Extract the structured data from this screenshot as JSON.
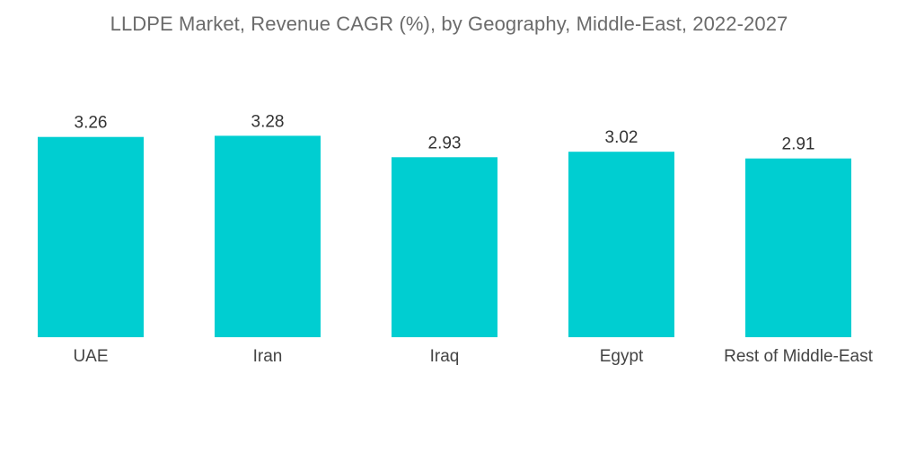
{
  "chart_data": {
    "type": "bar",
    "title": "LLDPE Market, Revenue CAGR (%), by Geography, Middle-East, 2022-2027",
    "xlabel": "",
    "ylabel": "",
    "categories": [
      "UAE",
      "Iran",
      "Iraq",
      "Egypt",
      "Rest of Middle-East"
    ],
    "values": [
      3.26,
      3.28,
      2.93,
      3.02,
      2.91
    ],
    "value_labels": [
      "3.26",
      "3.28",
      "2.93",
      "3.02",
      "2.91"
    ],
    "ylim": [
      0,
      3.3
    ],
    "grid": false,
    "legend": "none",
    "bar_color": "#00CED1"
  }
}
